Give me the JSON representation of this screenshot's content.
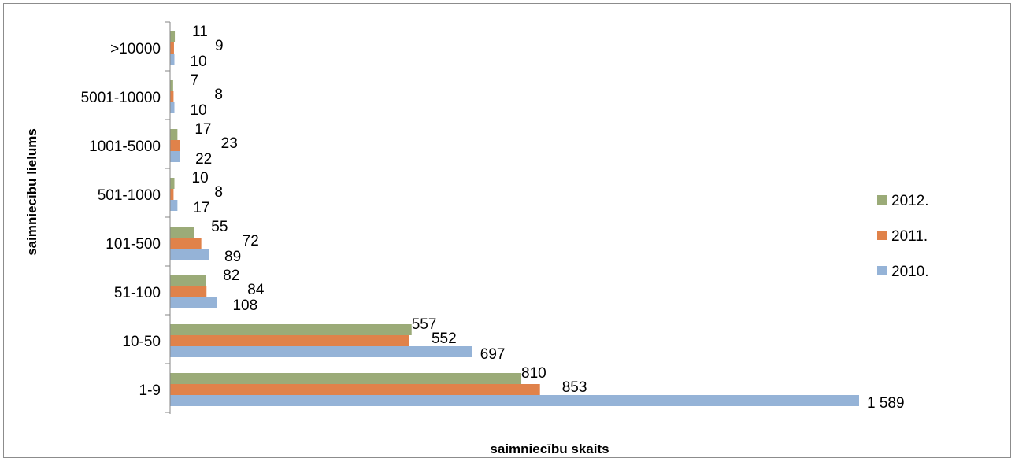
{
  "chart_data": {
    "type": "bar",
    "orientation": "horizontal",
    "categories": [
      "1-9",
      "10-50",
      "51-100",
      "101-500",
      "501-1000",
      "1001-5000",
      "5001-10000",
      ">10000"
    ],
    "series": [
      {
        "name": "2010.",
        "color": "#95b3d7",
        "values": [
          1589,
          697,
          108,
          89,
          17,
          22,
          10,
          10
        ],
        "labels": [
          "1 589",
          "697",
          "108",
          "89",
          "17",
          "22",
          "10",
          "10"
        ]
      },
      {
        "name": "2011.",
        "color": "#e0824a",
        "values": [
          853,
          552,
          84,
          72,
          8,
          23,
          8,
          9
        ],
        "labels": [
          "853",
          "552",
          "84",
          "72",
          "8",
          "23",
          "8",
          "9"
        ]
      },
      {
        "name": "2012.",
        "color": "#9bab78",
        "values": [
          810,
          557,
          82,
          55,
          10,
          17,
          7,
          11
        ],
        "labels": [
          "810",
          "557",
          "82",
          "55",
          "10",
          "17",
          "7",
          "11"
        ]
      }
    ],
    "legend_order": [
      "2012.",
      "2011.",
      "2010."
    ],
    "xlabel": "saimniecību skaits",
    "ylabel": "saimniecību lielums",
    "xlim": [
      0,
      1600
    ],
    "legend_position": "right",
    "grid": false
  }
}
